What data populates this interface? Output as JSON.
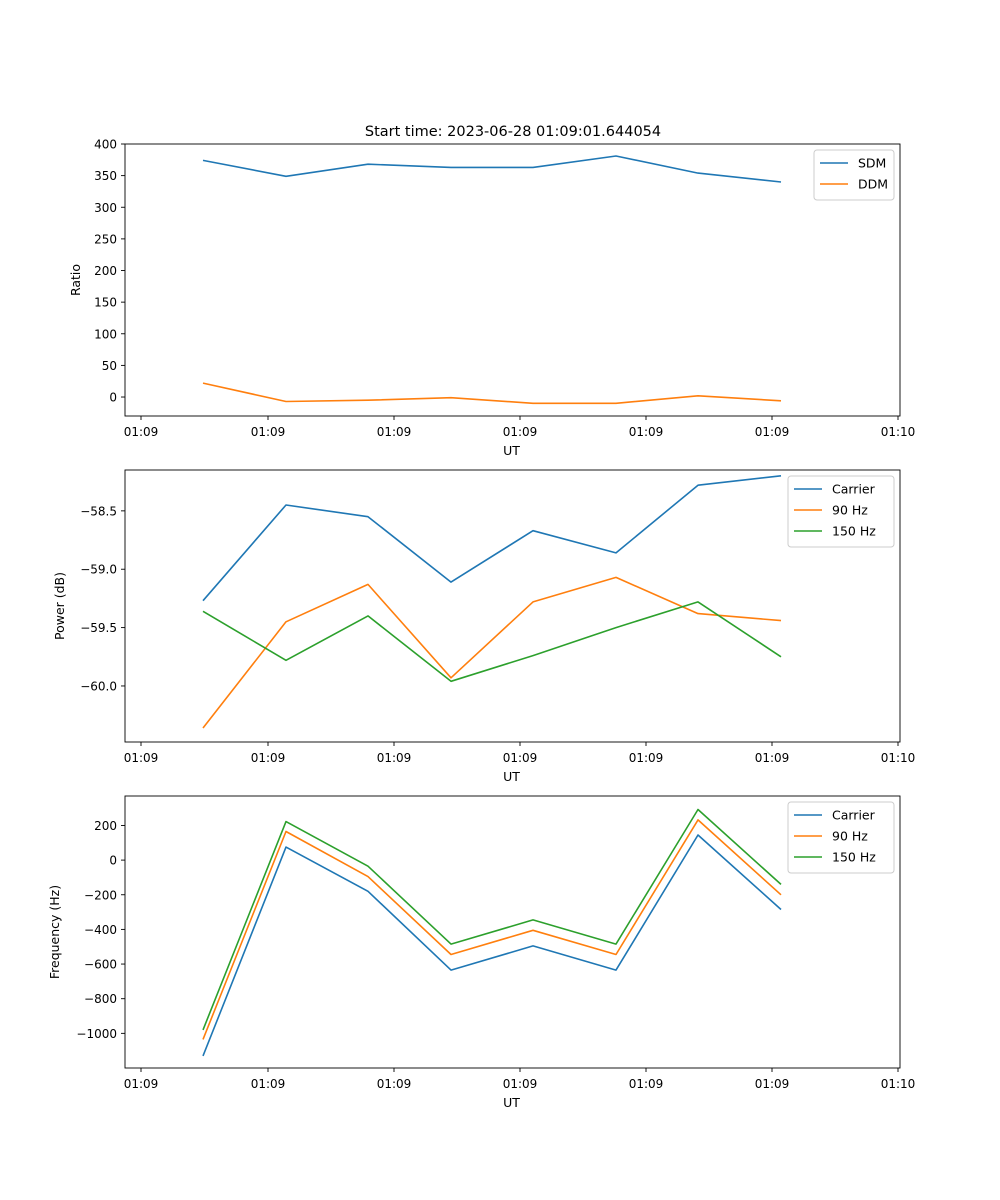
{
  "figure": {
    "title": "Start time: 2023-06-28 01:09:01.644054"
  },
  "chart_data": [
    {
      "type": "line",
      "title": "Start time: 2023-06-28 01:09:01.644054",
      "xlabel": "UT",
      "ylabel": "Ratio",
      "x_ticks": [
        "01:09",
        "01:09",
        "01:09",
        "01:09",
        "01:09",
        "01:09",
        "01:10"
      ],
      "y_ticks": [
        "0",
        "50",
        "100",
        "150",
        "200",
        "250",
        "300",
        "350",
        "400"
      ],
      "ylim": [
        -30,
        400
      ],
      "legend_position": "top-right",
      "series": [
        {
          "name": "SDM",
          "color": "#1f77b4",
          "values": [
            374,
            349,
            368,
            363,
            363,
            381,
            354,
            340
          ]
        },
        {
          "name": "DDM",
          "color": "#ff7f0e",
          "values": [
            22,
            -7,
            -5,
            -1,
            -10,
            -10,
            2,
            -6
          ]
        }
      ]
    },
    {
      "type": "line",
      "title": "",
      "xlabel": "UT",
      "ylabel": "Power (dB)",
      "x_ticks": [
        "01:09",
        "01:09",
        "01:09",
        "01:09",
        "01:09",
        "01:09",
        "01:10"
      ],
      "y_ticks": [
        "−60.0",
        "−59.5",
        "−59.0",
        "−58.5"
      ],
      "ylim": [
        -60.48,
        -58.15
      ],
      "legend_position": "top-right",
      "series": [
        {
          "name": "Carrier",
          "color": "#1f77b4",
          "values": [
            -59.27,
            -58.45,
            -58.55,
            -59.11,
            -58.67,
            -58.86,
            -58.28,
            -58.2
          ]
        },
        {
          "name": "90 Hz",
          "color": "#ff7f0e",
          "values": [
            -60.36,
            -59.45,
            -59.13,
            -59.93,
            -59.28,
            -59.07,
            -59.38,
            -59.44
          ]
        },
        {
          "name": "150 Hz",
          "color": "#2ca02c",
          "values": [
            -59.36,
            -59.78,
            -59.4,
            -59.96,
            -59.74,
            -59.5,
            -59.28,
            -59.75
          ]
        }
      ]
    },
    {
      "type": "line",
      "title": "",
      "xlabel": "UT",
      "ylabel": "Frequency (Hz)",
      "x_ticks": [
        "01:09",
        "01:09",
        "01:09",
        "01:09",
        "01:09",
        "01:09",
        "01:10"
      ],
      "y_ticks": [
        "−1000",
        "−800",
        "−600",
        "−400",
        "−200",
        "0",
        "200"
      ],
      "ylim": [
        -1200,
        370
      ],
      "legend_position": "top-right",
      "series": [
        {
          "name": "Carrier",
          "color": "#1f77b4",
          "values": [
            -1130,
            75,
            -180,
            -635,
            -495,
            -635,
            145,
            -285
          ]
        },
        {
          "name": "90 Hz",
          "color": "#ff7f0e",
          "values": [
            -1035,
            165,
            -95,
            -545,
            -405,
            -545,
            232,
            -200
          ]
        },
        {
          "name": "150 Hz",
          "color": "#2ca02c",
          "values": [
            -980,
            222,
            -35,
            -485,
            -345,
            -485,
            292,
            -140
          ]
        }
      ]
    }
  ]
}
